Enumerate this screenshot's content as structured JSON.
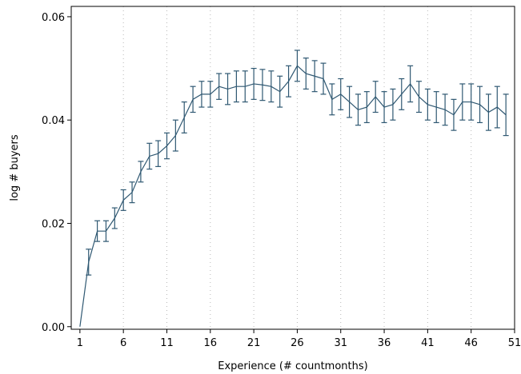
{
  "chart_data": {
    "type": "line",
    "title": "",
    "xlabel": "Experience (# countmonths)",
    "ylabel": "log # buyers",
    "xlim": [
      0,
      51
    ],
    "ylim": [
      -0.0005,
      0.062
    ],
    "xticks": [
      1,
      6,
      11,
      16,
      21,
      26,
      31,
      36,
      41,
      46,
      51
    ],
    "xtick_labels": [
      "1",
      "6",
      "11",
      "16",
      "21",
      "26",
      "31",
      "36",
      "41",
      "46",
      "51"
    ],
    "yticks": [
      0.0,
      0.02,
      0.04,
      0.06
    ],
    "ytick_labels": [
      "0.00",
      "0.02",
      "0.04",
      "0.06"
    ],
    "grid": "vertical dotted",
    "legend": "none",
    "series_color": "#2f5872",
    "series": [
      {
        "x": [
          1,
          2,
          3,
          4,
          5,
          6,
          7,
          8,
          9,
          10,
          11,
          12,
          13,
          14,
          15,
          16,
          17,
          18,
          19,
          20,
          21,
          22,
          23,
          24,
          25,
          26,
          27,
          28,
          29,
          30,
          31,
          32,
          33,
          34,
          35,
          36,
          37,
          38,
          39,
          40,
          41,
          42,
          43,
          44,
          45,
          46,
          47,
          48,
          49,
          50
        ],
        "y": [
          0.0,
          0.0125,
          0.0185,
          0.0185,
          0.021,
          0.0245,
          0.026,
          0.03,
          0.033,
          0.0335,
          0.035,
          0.037,
          0.0405,
          0.044,
          0.045,
          0.045,
          0.0465,
          0.046,
          0.0465,
          0.0465,
          0.047,
          0.0468,
          0.0465,
          0.0455,
          0.0475,
          0.0505,
          0.049,
          0.0485,
          0.048,
          0.044,
          0.045,
          0.0435,
          0.042,
          0.0425,
          0.0445,
          0.0425,
          0.043,
          0.045,
          0.047,
          0.0445,
          0.043,
          0.0425,
          0.042,
          0.041,
          0.0435,
          0.0435,
          0.043,
          0.0415,
          0.0425,
          0.041
        ],
        "err": [
          0.0,
          0.0025,
          0.002,
          0.002,
          0.002,
          0.002,
          0.002,
          0.002,
          0.0025,
          0.0025,
          0.0025,
          0.003,
          0.003,
          0.0025,
          0.0025,
          0.0025,
          0.0025,
          0.003,
          0.003,
          0.003,
          0.003,
          0.003,
          0.003,
          0.003,
          0.003,
          0.003,
          0.003,
          0.003,
          0.003,
          0.003,
          0.003,
          0.003,
          0.003,
          0.003,
          0.003,
          0.003,
          0.003,
          0.003,
          0.0035,
          0.003,
          0.003,
          0.003,
          0.003,
          0.003,
          0.0035,
          0.0035,
          0.0035,
          0.0035,
          0.004,
          0.004
        ]
      }
    ]
  }
}
